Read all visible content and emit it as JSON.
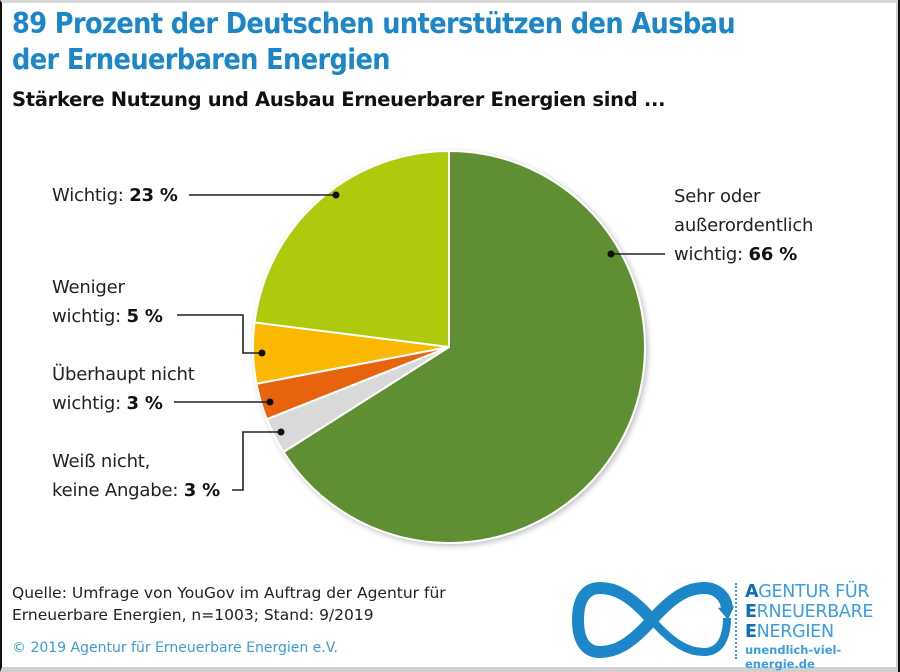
{
  "header": {
    "title_line1": "89 Prozent der Deutschen unterstützen den Ausbau",
    "title_line2": "der Erneuerbaren Energien",
    "subtitle": "Stärkere Nutzung und Ausbau Erneuerbarer Energien sind ..."
  },
  "chart_data": {
    "type": "pie",
    "title": "89 Prozent der Deutschen unterstützen den Ausbau der Erneuerbaren Energien",
    "subtitle": "Stärkere Nutzung und Ausbau Erneuerbarer Energien sind ...",
    "unit": "%",
    "start": "top",
    "direction": "clockwise",
    "slices": [
      {
        "label_lines": [
          "Sehr oder",
          "außerordentlich",
          "wichtig: "
        ],
        "value": 66,
        "value_text": "66 %",
        "color": "#5f8f32"
      },
      {
        "label_lines": [
          "Weiß nicht,",
          "keine Angabe: "
        ],
        "value": 3,
        "value_text": "3 %",
        "color": "#d9d9d9"
      },
      {
        "label_lines": [
          "Überhaupt nicht",
          "wichtig: "
        ],
        "value": 3,
        "value_text": "3 %",
        "color": "#e8640c"
      },
      {
        "label_lines": [
          "Weniger",
          "wichtig: "
        ],
        "value": 5,
        "value_text": "5 %",
        "color": "#fbb800"
      },
      {
        "label_lines": [
          "Wichtig: "
        ],
        "value": 23,
        "value_text": "23 %",
        "color": "#afca0b"
      }
    ]
  },
  "footer": {
    "source_line1": "Quelle: Umfrage von YouGov im Auftrag der Agentur für",
    "source_line2": "Erneuerbare Energien, n=1003; Stand: 9/2019",
    "copyright": "© 2019 Agentur für Erneuerbare Energien e.V."
  },
  "logo": {
    "icon": "infinity-icon",
    "line1_first": "A",
    "line1_rest": "GENTUR FÜR",
    "line2_first": "E",
    "line2_rest": "RNEUERBARE",
    "line3_first": "E",
    "line3_rest": "NERGIEN",
    "url": "unendlich-viel-energie.de",
    "color": "#1b86c8"
  }
}
